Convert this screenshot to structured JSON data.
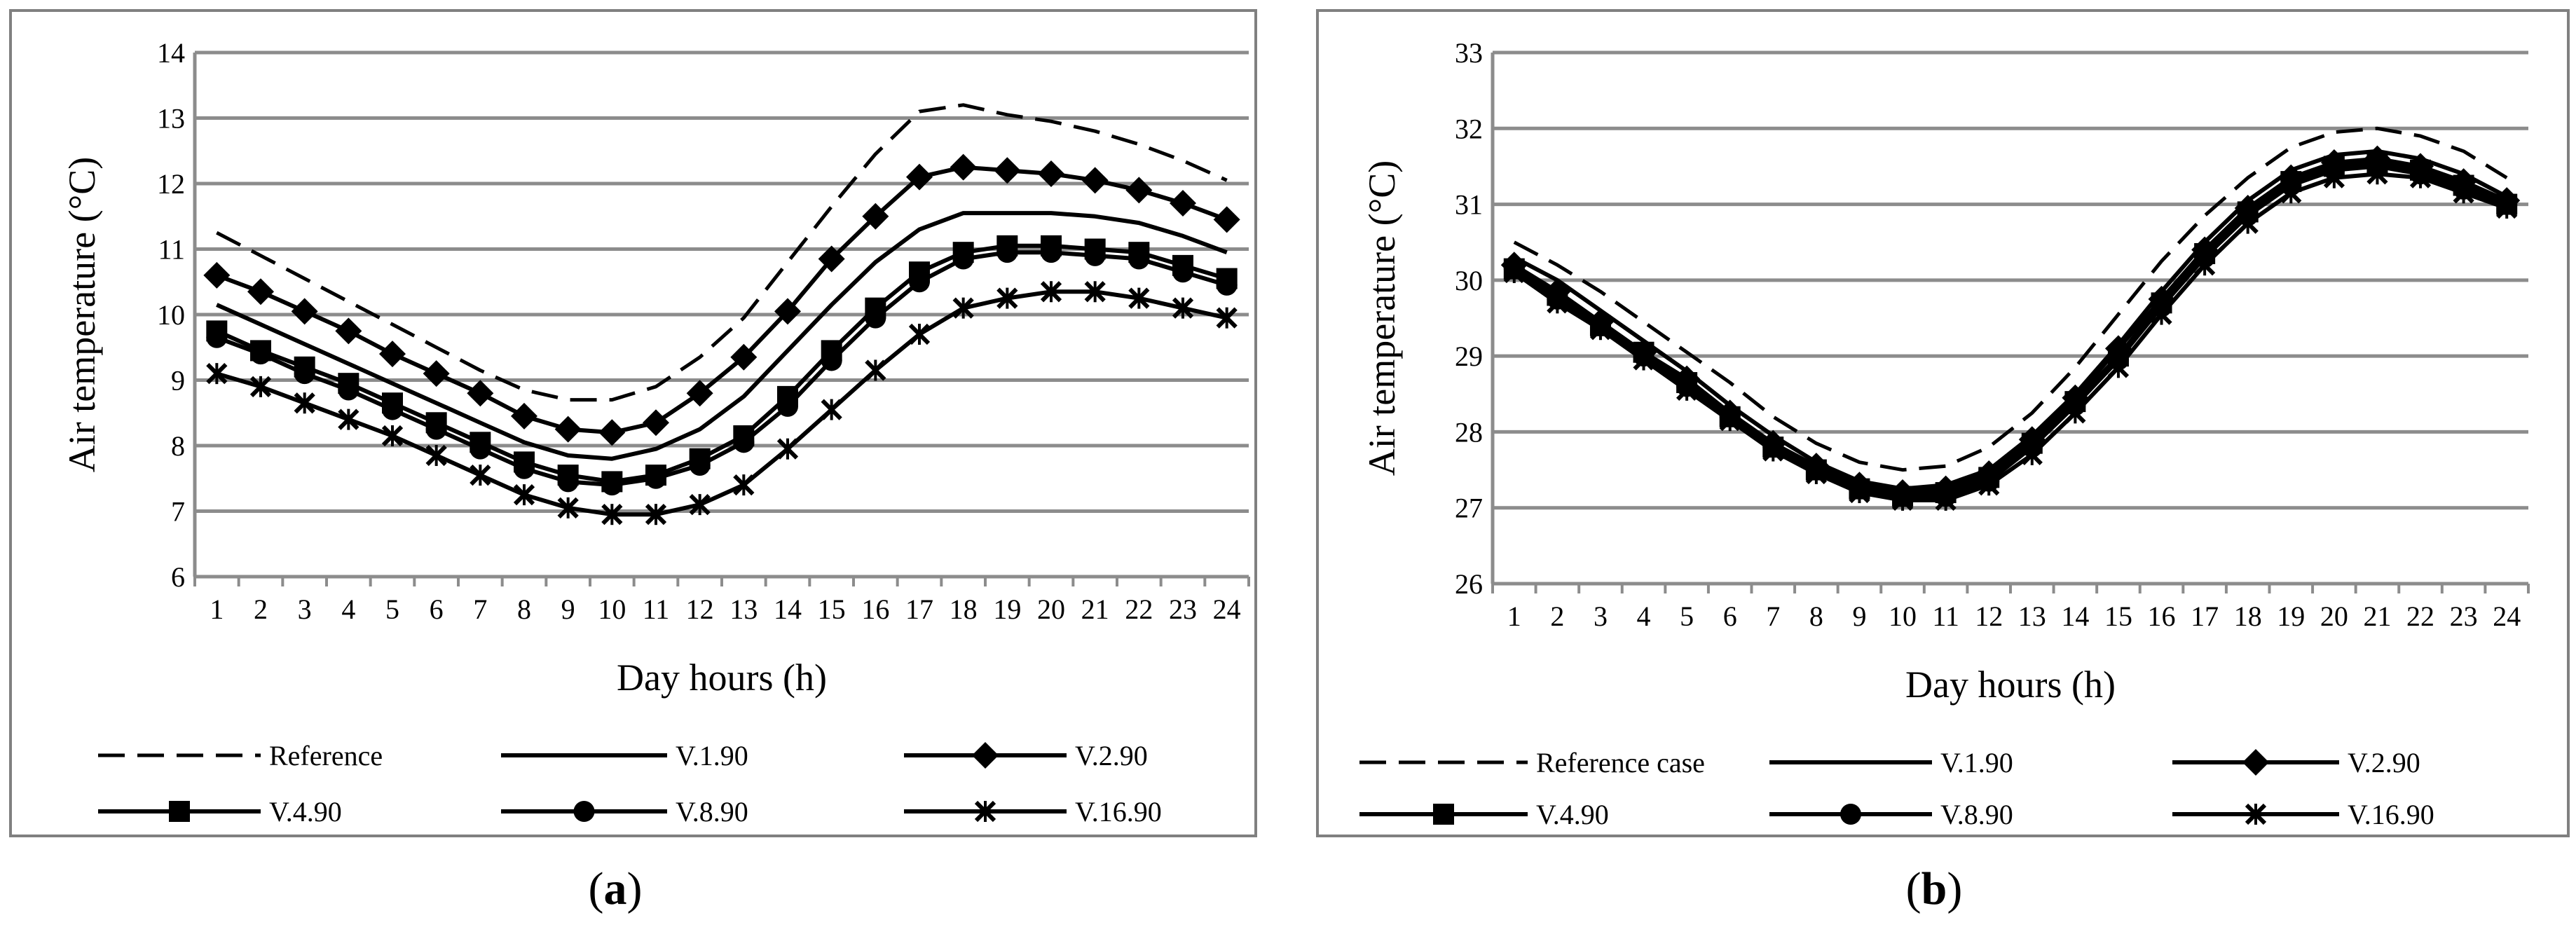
{
  "chart_data": [
    {
      "type": "line",
      "caption": "(a)",
      "caption_letter": "a",
      "xlabel": "Day hours (h)",
      "ylabel": "Air temperature (°C)",
      "x": [
        1,
        2,
        3,
        4,
        5,
        6,
        7,
        8,
        9,
        10,
        11,
        12,
        13,
        14,
        15,
        16,
        17,
        18,
        19,
        20,
        21,
        22,
        23,
        24
      ],
      "ylim": [
        6,
        14
      ],
      "yticks": [
        6,
        7,
        8,
        9,
        10,
        11,
        12,
        13,
        14
      ],
      "grid": true,
      "legend_position": "bottom",
      "series": [
        {
          "name": "Reference",
          "style": "dashed",
          "marker": "none",
          "values": [
            11.25,
            10.9,
            10.55,
            10.2,
            9.85,
            9.5,
            9.15,
            8.85,
            8.7,
            8.7,
            8.9,
            9.35,
            9.95,
            10.8,
            11.65,
            12.45,
            13.1,
            13.2,
            13.05,
            12.95,
            12.8,
            12.6,
            12.35,
            12.05
          ]
        },
        {
          "name": "V.1.90",
          "style": "solid",
          "marker": "none",
          "values": [
            10.15,
            9.85,
            9.55,
            9.25,
            8.95,
            8.65,
            8.35,
            8.05,
            7.85,
            7.8,
            7.95,
            8.25,
            8.75,
            9.45,
            10.15,
            10.8,
            11.3,
            11.55,
            11.55,
            11.55,
            11.5,
            11.4,
            11.2,
            10.95
          ]
        },
        {
          "name": "V.2.90",
          "style": "solid",
          "marker": "diamond",
          "values": [
            10.6,
            10.35,
            10.05,
            9.75,
            9.4,
            9.1,
            8.8,
            8.45,
            8.25,
            8.2,
            8.35,
            8.8,
            9.35,
            10.05,
            10.85,
            11.5,
            12.1,
            12.25,
            12.2,
            12.15,
            12.05,
            11.9,
            11.7,
            11.45
          ]
        },
        {
          "name": "V.4.90",
          "style": "solid",
          "marker": "square",
          "values": [
            9.75,
            9.45,
            9.2,
            8.95,
            8.65,
            8.35,
            8.05,
            7.75,
            7.55,
            7.45,
            7.55,
            7.8,
            8.15,
            8.75,
            9.45,
            10.1,
            10.65,
            10.95,
            11.05,
            11.05,
            11.0,
            10.95,
            10.75,
            10.55
          ]
        },
        {
          "name": "V.8.90",
          "style": "solid",
          "marker": "circle",
          "values": [
            9.65,
            9.4,
            9.1,
            8.85,
            8.55,
            8.25,
            7.95,
            7.65,
            7.45,
            7.4,
            7.5,
            7.7,
            8.05,
            8.6,
            9.3,
            9.95,
            10.5,
            10.85,
            10.95,
            10.95,
            10.9,
            10.85,
            10.65,
            10.45
          ]
        },
        {
          "name": "V.16.90",
          "style": "solid",
          "marker": "x",
          "values": [
            9.1,
            8.9,
            8.65,
            8.4,
            8.15,
            7.85,
            7.55,
            7.25,
            7.05,
            6.95,
            6.95,
            7.1,
            7.4,
            7.95,
            8.55,
            9.15,
            9.7,
            10.1,
            10.25,
            10.35,
            10.35,
            10.25,
            10.1,
            9.95
          ]
        }
      ]
    },
    {
      "type": "line",
      "caption": "(b)",
      "caption_letter": "b",
      "xlabel": "Day hours (h)",
      "ylabel": "Air temperature (°C)",
      "x": [
        1,
        2,
        3,
        4,
        5,
        6,
        7,
        8,
        9,
        10,
        11,
        12,
        13,
        14,
        15,
        16,
        17,
        18,
        19,
        20,
        21,
        22,
        23,
        24
      ],
      "ylim": [
        26,
        33
      ],
      "yticks": [
        26,
        27,
        28,
        29,
        30,
        31,
        32,
        33
      ],
      "grid": true,
      "legend_position": "bottom",
      "series": [
        {
          "name": "Reference case",
          "style": "dashed",
          "marker": "none",
          "values": [
            30.5,
            30.2,
            29.85,
            29.45,
            29.05,
            28.65,
            28.2,
            27.85,
            27.6,
            27.5,
            27.55,
            27.8,
            28.25,
            28.85,
            29.55,
            30.25,
            30.85,
            31.35,
            31.75,
            31.95,
            32.0,
            31.9,
            31.7,
            31.35
          ]
        },
        {
          "name": "V.1.90",
          "style": "solid",
          "marker": "none",
          "values": [
            30.3,
            30.0,
            29.6,
            29.2,
            28.8,
            28.35,
            27.95,
            27.6,
            27.35,
            27.25,
            27.3,
            27.5,
            27.95,
            28.5,
            29.15,
            29.85,
            30.5,
            31.05,
            31.45,
            31.65,
            31.7,
            31.6,
            31.4,
            31.1
          ]
        },
        {
          "name": "V.2.90",
          "style": "solid",
          "marker": "diamond",
          "values": [
            30.2,
            29.85,
            29.45,
            29.05,
            28.7,
            28.25,
            27.85,
            27.55,
            27.3,
            27.2,
            27.25,
            27.45,
            27.9,
            28.45,
            29.1,
            29.75,
            30.4,
            30.95,
            31.35,
            31.55,
            31.6,
            31.5,
            31.3,
            31.05
          ]
        },
        {
          "name": "V.4.90",
          "style": "solid",
          "marker": "square",
          "values": [
            30.15,
            29.8,
            29.4,
            29.05,
            28.65,
            28.2,
            27.8,
            27.5,
            27.25,
            27.15,
            27.2,
            27.4,
            27.85,
            28.4,
            29.0,
            29.7,
            30.35,
            30.9,
            31.3,
            31.5,
            31.55,
            31.45,
            31.25,
            31.0
          ]
        },
        {
          "name": "V.8.90",
          "style": "solid",
          "marker": "circle",
          "values": [
            30.15,
            29.75,
            29.4,
            29.0,
            28.6,
            28.2,
            27.8,
            27.5,
            27.25,
            27.15,
            27.15,
            27.35,
            27.8,
            28.35,
            28.95,
            29.65,
            30.3,
            30.85,
            31.25,
            31.45,
            31.5,
            31.4,
            31.2,
            31.0
          ]
        },
        {
          "name": "V.16.90",
          "style": "solid",
          "marker": "x",
          "values": [
            30.1,
            29.7,
            29.35,
            28.95,
            28.55,
            28.15,
            27.75,
            27.45,
            27.2,
            27.1,
            27.1,
            27.3,
            27.7,
            28.25,
            28.85,
            29.55,
            30.2,
            30.75,
            31.15,
            31.35,
            31.4,
            31.35,
            31.15,
            30.95
          ]
        }
      ]
    }
  ]
}
